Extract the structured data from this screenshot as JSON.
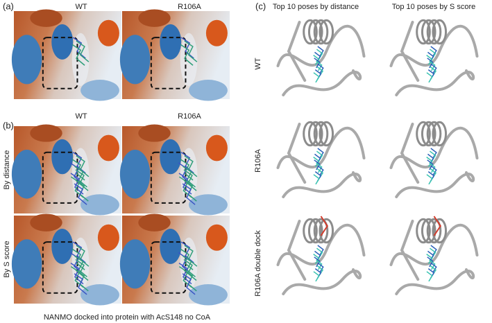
{
  "panel_a": {
    "label": "(a)",
    "columns": [
      "WT",
      "R106A"
    ]
  },
  "panel_b": {
    "label": "(b)",
    "columns": [
      "WT",
      "R106A"
    ],
    "rows": [
      "By distance",
      "By S score"
    ]
  },
  "panel_c": {
    "label": "(c)",
    "columns": [
      "Top 10 poses by distance",
      "Top 10 poses by S score"
    ],
    "rows": [
      "WT",
      "R106A",
      "R106A double dock"
    ]
  },
  "caption": "NANMO docked into protein with AcS148 no CoA"
}
